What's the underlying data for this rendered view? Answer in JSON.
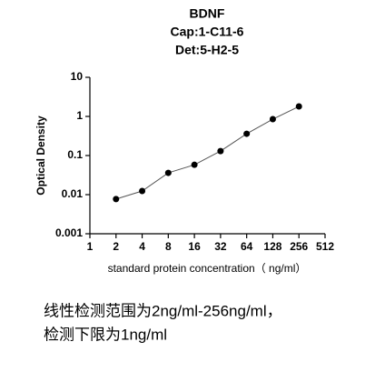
{
  "chart_data": {
    "type": "line",
    "title": [
      "BDNF",
      "Cap:1-C11-6",
      "Det:5-H2-5"
    ],
    "x_label": "standard protein concentration（ ng/ml）",
    "y_label": "Optical Density",
    "x": [
      2,
      4,
      8,
      16,
      32,
      64,
      128,
      256
    ],
    "series": [
      {
        "color": "#000000",
        "values": [
          0.0077,
          0.0124,
          0.036,
          0.058,
          0.13,
          0.36,
          0.85,
          1.8
        ]
      }
    ],
    "line_color": "#555555",
    "xlim": [
      1,
      512
    ],
    "xticks": [
      1,
      2,
      4,
      8,
      16,
      32,
      64,
      128,
      256,
      512
    ],
    "xlog_base": 2,
    "ylim": [
      0.001,
      10
    ],
    "yticks": [
      0.001,
      0.01,
      0.1,
      1,
      10
    ],
    "ylog_base": 10,
    "caption": [
      "线性检测范围为2ng/ml-256ng/ml，",
      "检测下限为1ng/ml"
    ]
  }
}
